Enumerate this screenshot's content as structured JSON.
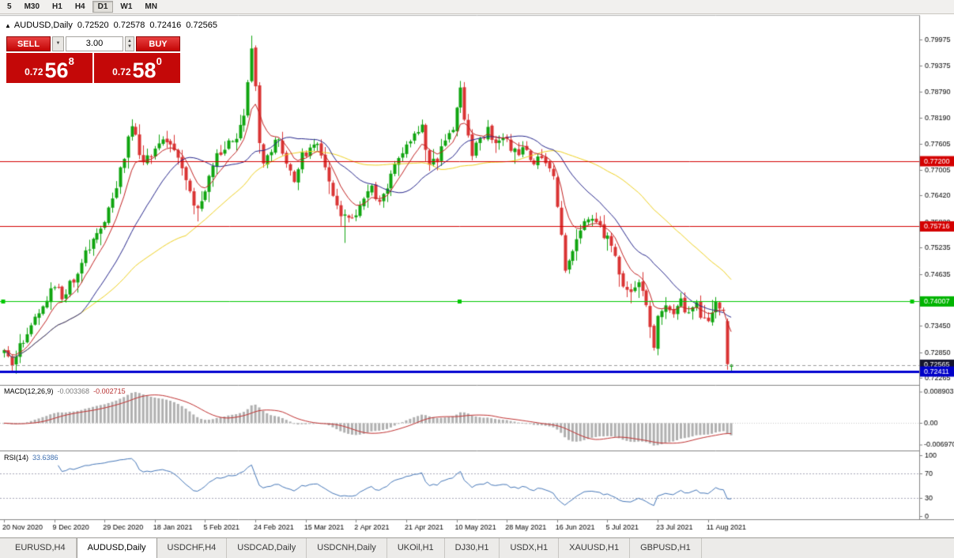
{
  "toolbar": {
    "timeframes": [
      "5",
      "M30",
      "H1",
      "H4",
      "D1",
      "W1",
      "MN"
    ],
    "active": "D1"
  },
  "chart_header": {
    "marker": "▲",
    "symbol_period": "AUDUSD,Daily",
    "open": "0.72520",
    "high": "0.72578",
    "low": "0.72416",
    "close": "0.72565"
  },
  "trade_panel": {
    "sell_label": "SELL",
    "buy_label": "BUY",
    "volume": "3.00",
    "sell_price": {
      "prefix": "0.72",
      "big": "56",
      "sup": "8"
    },
    "buy_price": {
      "prefix": "0.72",
      "big": "58",
      "sup": "0"
    }
  },
  "price_axis": {
    "ticks": [
      "0.79975",
      "0.79375",
      "0.78790",
      "0.78190",
      "0.77605",
      "0.77005",
      "0.76420",
      "0.75820",
      "0.75235",
      "0.74635",
      "0.74050",
      "0.73450",
      "0.72850",
      "0.72265"
    ],
    "badges": [
      {
        "value": "0.77200",
        "color": "#D40000"
      },
      {
        "value": "0.75716",
        "color": "#D40000"
      },
      {
        "value": "0.74007",
        "color": "#00B400"
      },
      {
        "value": "0.72565",
        "color": "#15152D"
      },
      {
        "value": "0.72411",
        "color": "#0000C8"
      }
    ]
  },
  "indicators": {
    "macd": {
      "label": "MACD(12,26,9)",
      "value_main": "-0.003368",
      "value_signal": "-0.002715",
      "axis": [
        "0.008903",
        "0.00",
        "-0.006970"
      ]
    },
    "rsi": {
      "label": "RSI(14)",
      "value": "33.6386",
      "axis": [
        "100",
        "70",
        "30",
        "0"
      ],
      "levels": [
        70,
        30
      ]
    }
  },
  "time_axis": {
    "labels": [
      "20 Nov 2020",
      "9 Dec 2020",
      "29 Dec 2020",
      "18 Jan 2021",
      "5 Feb 2021",
      "24 Feb 2021",
      "15 Mar 2021",
      "2 Apr 2021",
      "21 Apr 2021",
      "10 May 2021",
      "28 May 2021",
      "16 Jun 2021",
      "5 Jul 2021",
      "23 Jul 2021",
      "11 Aug 2021"
    ]
  },
  "tabs": {
    "items": [
      "EURUSD,H4",
      "AUDUSD,Daily",
      "USDCHF,H4",
      "USDCAD,Daily",
      "USDCNH,Daily",
      "UKOil,H1",
      "DJ30,H1",
      "USDX,H1",
      "XAUUSD,H1",
      "GBPUSD,H1"
    ],
    "active": "AUDUSD,Daily"
  },
  "chart_data": {
    "type": "candlestick",
    "symbol": "AUDUSD",
    "period": "Daily",
    "candle_count": 189,
    "visible_price_range": [
      0.721,
      0.8051
    ],
    "current_price": 0.72565,
    "colors": {
      "up": "#10A510",
      "down": "#DA3434",
      "ma_fast": "#C22121",
      "ma_mid": "#26268C",
      "ma_slow": "#EFD120",
      "macd_hist": "#B0B0B0",
      "macd_signal": "#C03030",
      "rsi_line": "#4476B8",
      "hline_red": "#D40000",
      "hline_green": "#00C800",
      "hline_blue": "#0000D0"
    },
    "hlines": [
      {
        "price": 0.772,
        "color": "#D40000",
        "width": 1
      },
      {
        "price": 0.75716,
        "color": "#D40000",
        "width": 1
      },
      {
        "price": 0.74007,
        "color": "#00C800",
        "width": 1,
        "selected": true
      },
      {
        "price": 0.72411,
        "color": "#0000D0",
        "width": 3
      }
    ],
    "ma": [
      {
        "period": 8,
        "type": "ema",
        "color": "#C22121"
      },
      {
        "period": 21,
        "type": "sma",
        "color": "#26268C"
      },
      {
        "period": 48,
        "type": "sma",
        "color": "#EFD120"
      }
    ],
    "macd": {
      "fast": 12,
      "slow": 26,
      "signal": 9
    },
    "rsi": {
      "period": 14
    },
    "price_path": [
      [
        0,
        0.7285
      ],
      [
        2,
        0.7262
      ],
      [
        4,
        0.73
      ],
      [
        7,
        0.7345
      ],
      [
        10,
        0.74
      ],
      [
        13,
        0.7438
      ],
      [
        15,
        0.7408
      ],
      [
        18,
        0.7452
      ],
      [
        21,
        0.7505
      ],
      [
        24,
        0.756
      ],
      [
        26,
        0.7578
      ],
      [
        28,
        0.764
      ],
      [
        30,
        0.77
      ],
      [
        32,
        0.7765
      ],
      [
        33,
        0.78
      ],
      [
        34,
        0.777
      ],
      [
        36,
        0.7715
      ],
      [
        38,
        0.773
      ],
      [
        40,
        0.7755
      ],
      [
        42,
        0.7775
      ],
      [
        44,
        0.774
      ],
      [
        46,
        0.7705
      ],
      [
        48,
        0.765
      ],
      [
        50,
        0.7603
      ],
      [
        52,
        0.766
      ],
      [
        54,
        0.7715
      ],
      [
        56,
        0.774
      ],
      [
        58,
        0.776
      ],
      [
        60,
        0.7775
      ],
      [
        62,
        0.7815
      ],
      [
        63,
        0.789
      ],
      [
        64,
        0.7965
      ],
      [
        65,
        0.788
      ],
      [
        66,
        0.775
      ],
      [
        67,
        0.7715
      ],
      [
        69,
        0.7745
      ],
      [
        71,
        0.777
      ],
      [
        73,
        0.7715
      ],
      [
        75,
        0.768
      ],
      [
        77,
        0.773
      ],
      [
        79,
        0.775
      ],
      [
        81,
        0.7762
      ],
      [
        83,
        0.7705
      ],
      [
        85,
        0.765
      ],
      [
        87,
        0.76
      ],
      [
        89,
        0.7582
      ],
      [
        91,
        0.7608
      ],
      [
        93,
        0.7635
      ],
      [
        95,
        0.7655
      ],
      [
        97,
        0.7625
      ],
      [
        99,
        0.767
      ],
      [
        101,
        0.7705
      ],
      [
        103,
        0.774
      ],
      [
        105,
        0.7758
      ],
      [
        107,
        0.7788
      ],
      [
        108,
        0.78
      ],
      [
        109,
        0.7745
      ],
      [
        110,
        0.771
      ],
      [
        112,
        0.7725
      ],
      [
        114,
        0.776
      ],
      [
        116,
        0.78
      ],
      [
        117,
        0.784
      ],
      [
        118,
        0.788
      ],
      [
        119,
        0.7825
      ],
      [
        120,
        0.777
      ],
      [
        121,
        0.7735
      ],
      [
        123,
        0.7772
      ],
      [
        125,
        0.7792
      ],
      [
        127,
        0.7752
      ],
      [
        129,
        0.7772
      ],
      [
        131,
        0.775
      ],
      [
        133,
        0.7742
      ],
      [
        135,
        0.7752
      ],
      [
        137,
        0.7705
      ],
      [
        139,
        0.7738
      ],
      [
        141,
        0.7708
      ],
      [
        142,
        0.769
      ],
      [
        143,
        0.7625
      ],
      [
        144,
        0.7552
      ],
      [
        145,
        0.7482
      ],
      [
        146,
        0.7498
      ],
      [
        148,
        0.7545
      ],
      [
        150,
        0.7585
      ],
      [
        152,
        0.7592
      ],
      [
        154,
        0.7565
      ],
      [
        156,
        0.7548
      ],
      [
        158,
        0.7495
      ],
      [
        160,
        0.7442
      ],
      [
        162,
        0.7432
      ],
      [
        164,
        0.7442
      ],
      [
        166,
        0.7392
      ],
      [
        167,
        0.7352
      ],
      [
        168,
        0.7302
      ],
      [
        169,
        0.7362
      ],
      [
        171,
        0.7392
      ],
      [
        173,
        0.7362
      ],
      [
        175,
        0.7398
      ],
      [
        177,
        0.7372
      ],
      [
        179,
        0.7388
      ],
      [
        181,
        0.736
      ],
      [
        182,
        0.7352
      ],
      [
        184,
        0.7392
      ],
      [
        186,
        0.7368
      ]
    ],
    "high_marks": [
      [
        33,
        0.7805
      ],
      [
        64,
        0.8006
      ],
      [
        108,
        0.7815
      ],
      [
        118,
        0.7891
      ]
    ],
    "low_marks": [
      [
        2,
        0.7252
      ],
      [
        50,
        0.7583
      ],
      [
        88,
        0.7534
      ],
      [
        145,
        0.7477
      ],
      [
        168,
        0.7289
      ]
    ],
    "last_candles": [
      {
        "o": 0.7356,
        "h": 0.7362,
        "l": 0.7245,
        "c": 0.7258
      },
      {
        "o": 0.7252,
        "h": 0.72578,
        "l": 0.72416,
        "c": 0.72565
      }
    ]
  }
}
